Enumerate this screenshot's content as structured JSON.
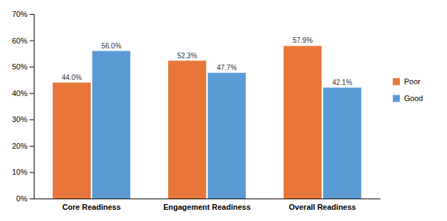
{
  "chart_data": {
    "type": "bar",
    "categories": [
      "Core Readiness",
      "Engagement Readiness",
      "Overall Readiness"
    ],
    "series": [
      {
        "name": "Poor",
        "color": "#E8763A",
        "values": [
          44.0,
          52.3,
          57.9
        ],
        "value_labels": [
          "44.0%",
          "52.3%",
          "57.9%"
        ]
      },
      {
        "name": "Good",
        "color": "#5B9BD5",
        "values": [
          56.0,
          47.7,
          42.1
        ],
        "value_labels": [
          "56.0%",
          "47.7%",
          "42.1%"
        ]
      }
    ],
    "ylim": [
      0,
      70
    ],
    "yticks": [
      {
        "value": 0,
        "label": "0%"
      },
      {
        "value": 10,
        "label": "10%"
      },
      {
        "value": 20,
        "label": "20%"
      },
      {
        "value": 30,
        "label": "30%"
      },
      {
        "value": 40,
        "label": "40%"
      },
      {
        "value": 50,
        "label": "50%"
      },
      {
        "value": 60,
        "label": "60%"
      },
      {
        "value": 70,
        "label": "70%"
      }
    ],
    "grid": false,
    "legend": "right",
    "data_labels": true
  }
}
